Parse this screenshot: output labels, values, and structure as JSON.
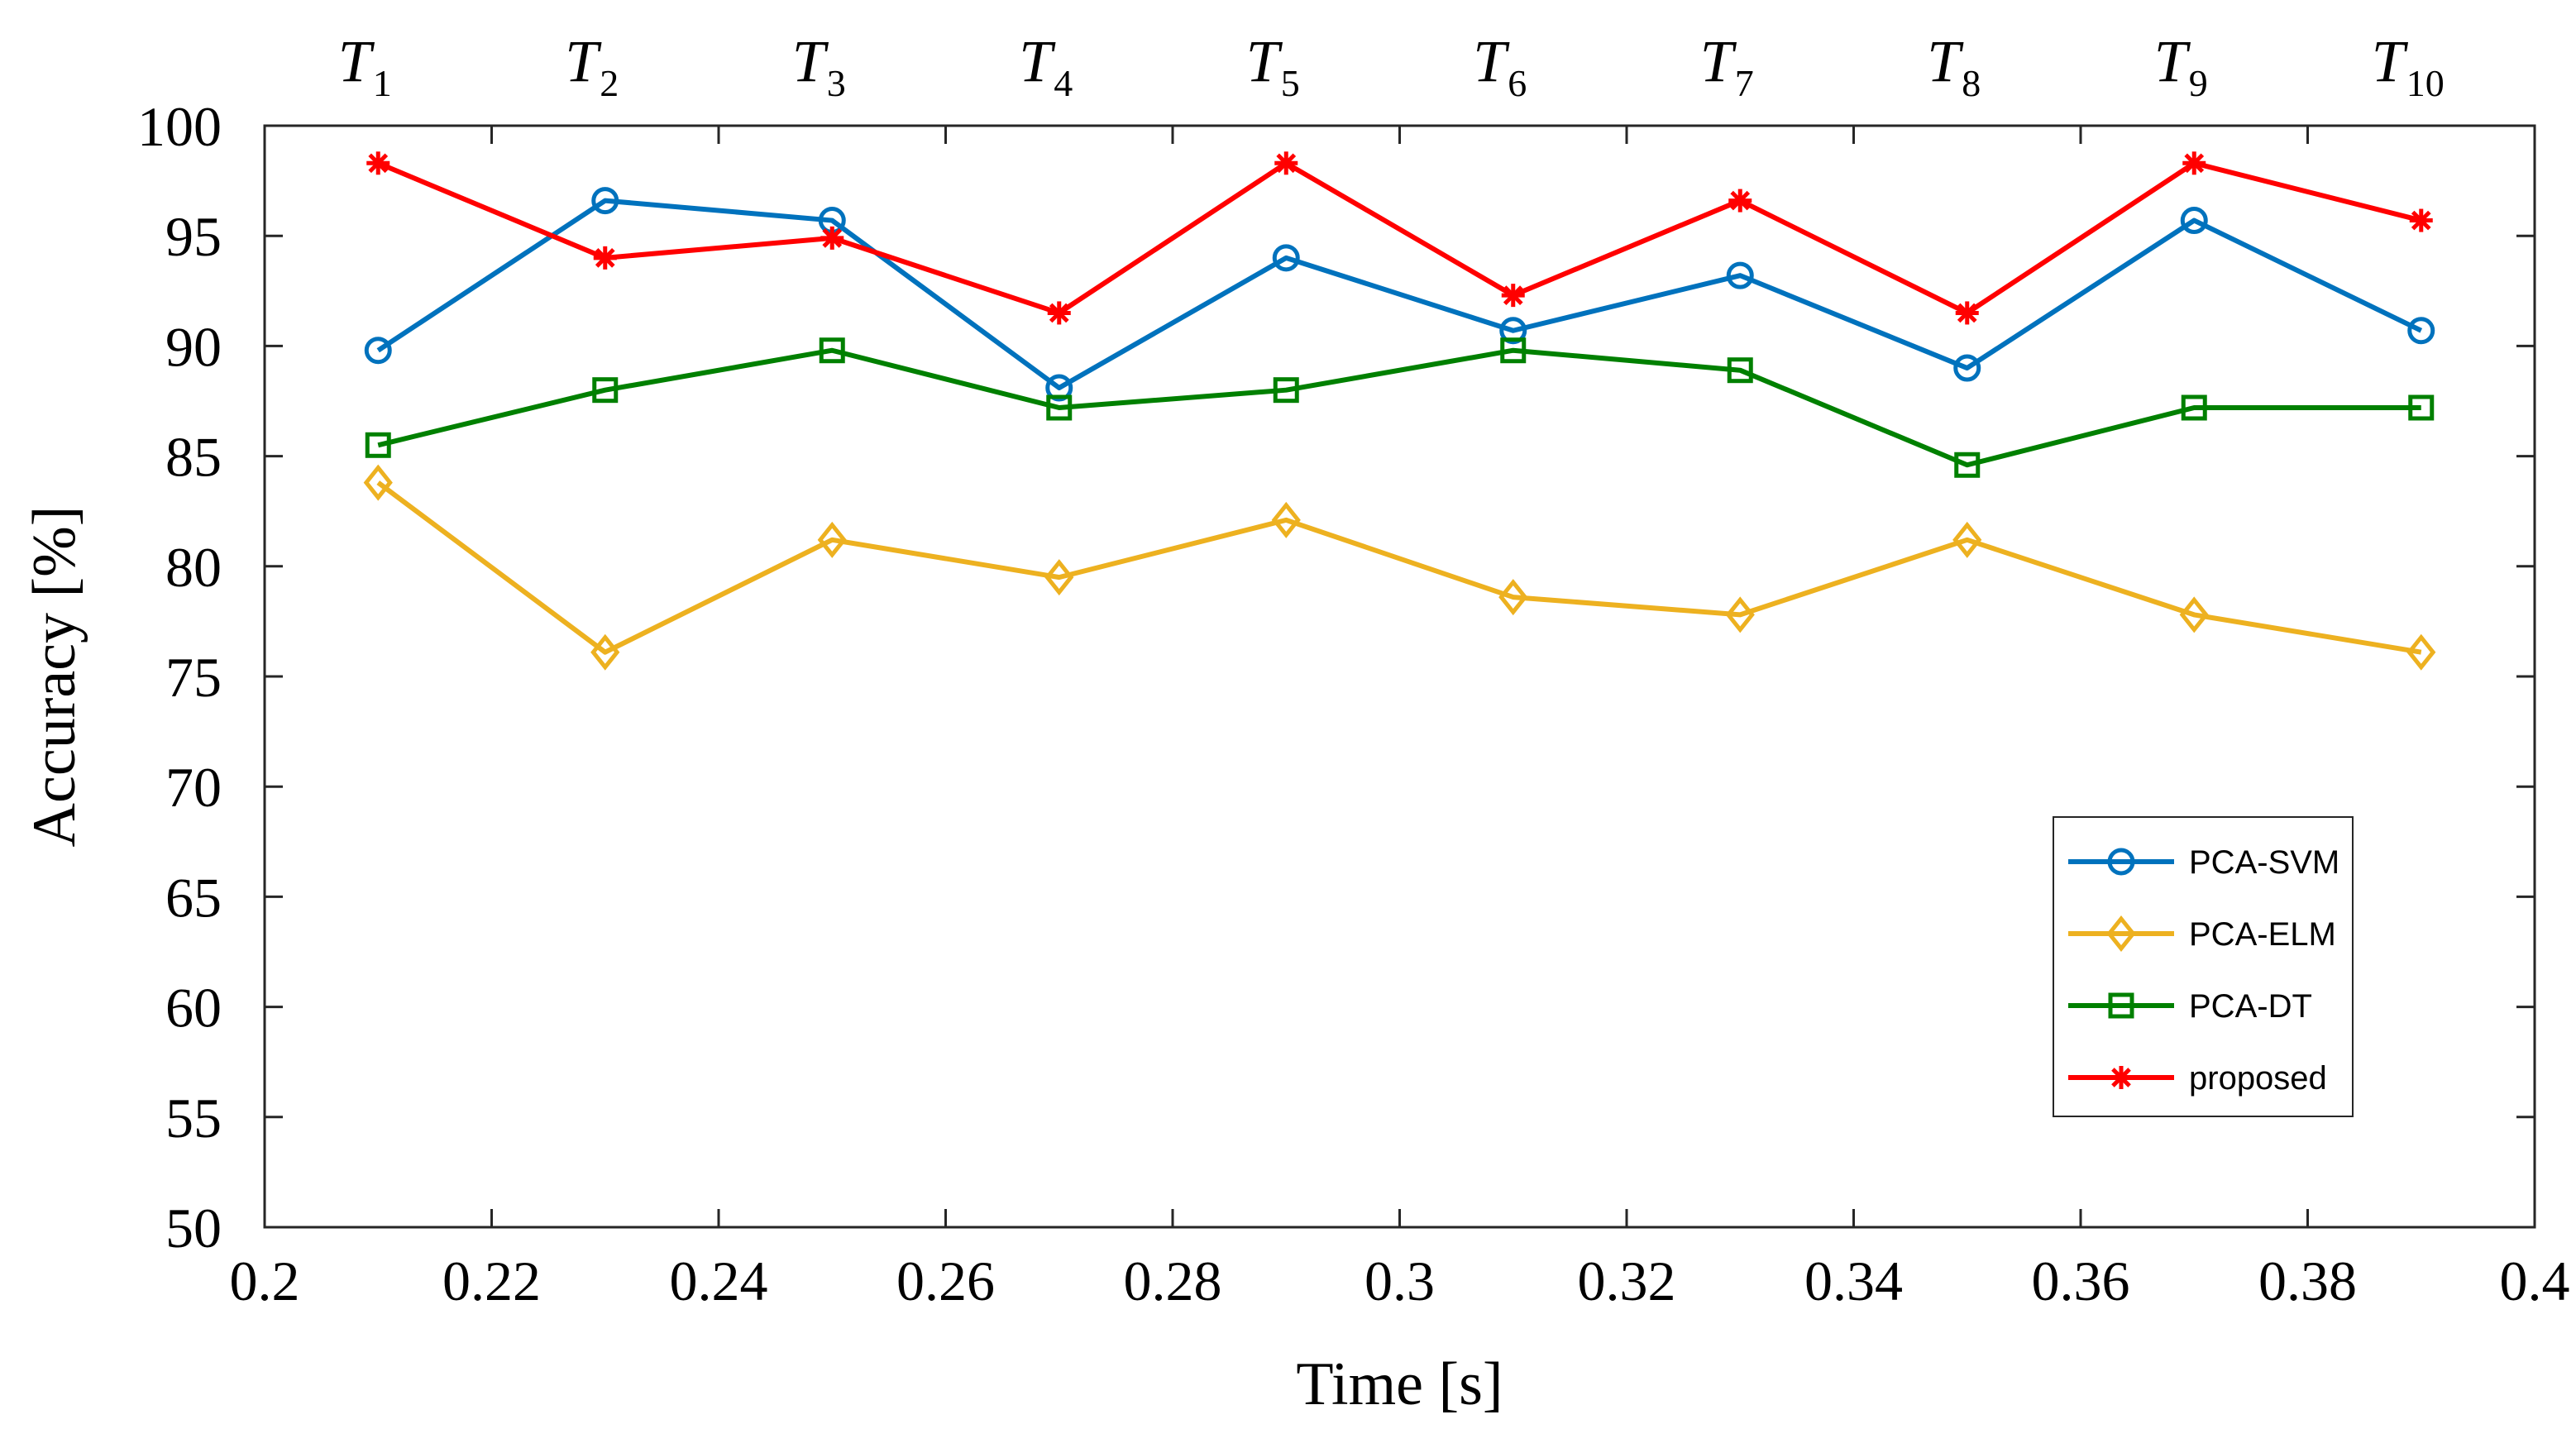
{
  "chart_data": {
    "type": "line",
    "title": "",
    "xlabel": "Time [s]",
    "ylabel": "Accuracy [%]",
    "xlim": [
      0.2,
      0.4
    ],
    "ylim": [
      50,
      100
    ],
    "xticks": [
      0.2,
      0.22,
      0.24,
      0.26,
      0.28,
      0.3,
      0.32,
      0.34,
      0.36,
      0.38,
      0.4
    ],
    "xtick_labels": [
      "0.2",
      "0.22",
      "0.24",
      "0.26",
      "0.28",
      "0.3",
      "0.32",
      "0.34",
      "0.36",
      "0.38",
      "0.4"
    ],
    "yticks": [
      50,
      55,
      60,
      65,
      70,
      75,
      80,
      85,
      90,
      95,
      100
    ],
    "ytick_labels": [
      "50",
      "55",
      "60",
      "65",
      "70",
      "75",
      "80",
      "85",
      "90",
      "95",
      "100"
    ],
    "x": [
      0.21,
      0.23,
      0.25,
      0.27,
      0.29,
      0.31,
      0.33,
      0.35,
      0.37,
      0.39
    ],
    "top_labels": [
      {
        "main": "T",
        "sub": "1"
      },
      {
        "main": "T",
        "sub": "2"
      },
      {
        "main": "T",
        "sub": "3"
      },
      {
        "main": "T",
        "sub": "4"
      },
      {
        "main": "T",
        "sub": "5"
      },
      {
        "main": "T",
        "sub": "6"
      },
      {
        "main": "T",
        "sub": "7"
      },
      {
        "main": "T",
        "sub": "8"
      },
      {
        "main": "T",
        "sub": "9"
      },
      {
        "main": "T",
        "sub": "10"
      }
    ],
    "grid": false,
    "legend_position": "bottom-right",
    "series": [
      {
        "name": "PCA-SVM",
        "color": "#0072BD",
        "marker": "circle",
        "values": [
          89.8,
          96.6,
          95.7,
          88.1,
          94.0,
          90.7,
          93.2,
          89.0,
          95.7,
          90.7
        ]
      },
      {
        "name": "PCA-ELM",
        "color": "#EDB120",
        "marker": "diamond",
        "values": [
          83.8,
          76.1,
          81.2,
          79.5,
          82.1,
          78.6,
          77.8,
          81.2,
          77.8,
          76.1
        ]
      },
      {
        "name": "PCA-DT",
        "color": "#008000",
        "marker": "square",
        "values": [
          85.5,
          88.0,
          89.8,
          87.2,
          88.0,
          89.8,
          88.9,
          84.6,
          87.2,
          87.2
        ]
      },
      {
        "name": "proposed",
        "color": "#FF0000",
        "marker": "star",
        "values": [
          98.3,
          94.0,
          94.9,
          91.5,
          98.3,
          92.3,
          96.6,
          91.5,
          98.3,
          95.7
        ]
      }
    ]
  }
}
